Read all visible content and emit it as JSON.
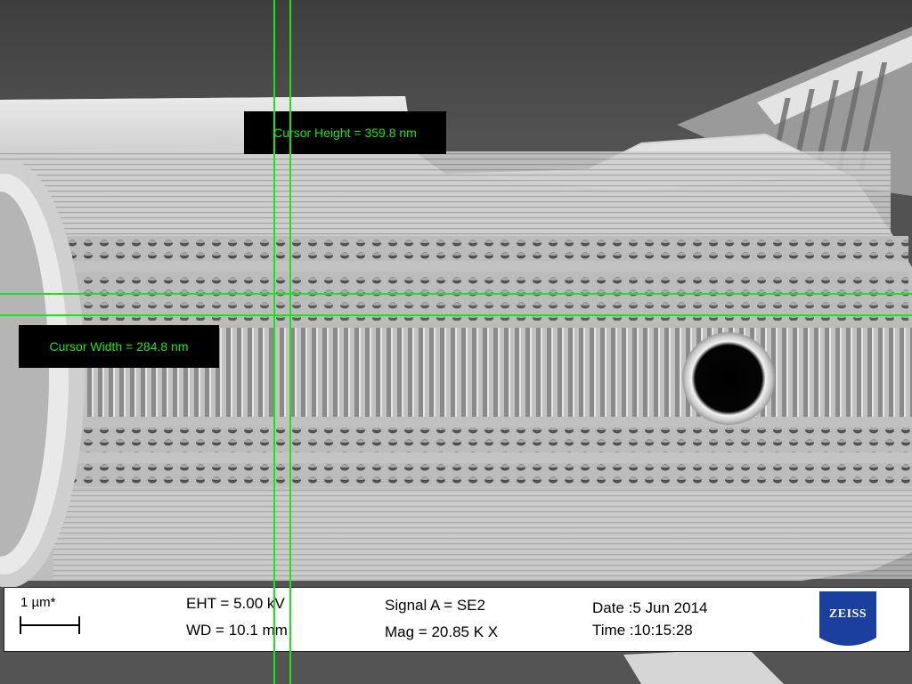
{
  "measurements": {
    "cursor_height": "Cursor Height = 359.8 nm",
    "cursor_width": "Cursor Width = 284.8 nm"
  },
  "info_bar": {
    "scale_label": "1 µm*",
    "eht": "EHT =  5.00 kV",
    "wd": "WD = 10.1 mm",
    "signal": "Signal A = SE2",
    "mag": "Mag =  20.85 K X",
    "date": "Date :5 Jun 2014",
    "time": "Time :10:15:28",
    "logo_text": "ZEISS"
  },
  "colors": {
    "cursor": "#19e619",
    "label_background": "#000000",
    "logo_blue": "#1b3f9e"
  }
}
